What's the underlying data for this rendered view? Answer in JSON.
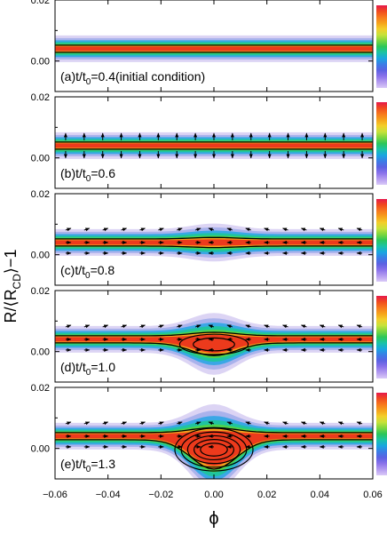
{
  "figure": {
    "ylabel": "R/⟨R",
    "ylabel_sub": "CD",
    "ylabel_tail": "⟩−1",
    "xlabel": "ϕ",
    "xticks": [
      "−0.06",
      "−0.04",
      "−0.02",
      "0.00",
      "0.02",
      "0.04",
      "0.06"
    ],
    "yticks": [
      "0.02",
      "0.00"
    ]
  },
  "chart_data": [
    {
      "type": "heatmap",
      "panel": "a",
      "label_pre": "(a)t/t",
      "label_sub": "0",
      "label_post": "=0.4(initial condition)",
      "xlim": [
        -0.06,
        0.06
      ],
      "ylim": [
        -0.01,
        0.02
      ],
      "dip_depth": 0.0,
      "blob_strength": 0.0,
      "arrows": "none"
    },
    {
      "type": "heatmap",
      "panel": "b",
      "label_pre": "(b)t/t",
      "label_sub": "0",
      "label_post": "=0.6",
      "xlim": [
        -0.06,
        0.06
      ],
      "ylim": [
        -0.01,
        0.02
      ],
      "dip_depth": 0.0,
      "blob_strength": 0.0,
      "arrows": "vertical"
    },
    {
      "type": "heatmap",
      "panel": "c",
      "label_pre": "(c)t/t",
      "label_sub": "0",
      "label_post": "=0.8",
      "xlim": [
        -0.06,
        0.06
      ],
      "ylim": [
        -0.01,
        0.02
      ],
      "dip_depth": 0.0,
      "blob_strength": 0.3,
      "arrows": "converging"
    },
    {
      "type": "heatmap",
      "panel": "d",
      "label_pre": "(d)t/t",
      "label_sub": "0",
      "label_post": "=1.0",
      "xlim": [
        -0.06,
        0.06
      ],
      "ylim": [
        -0.01,
        0.02
      ],
      "dip_depth": 0.003,
      "blob_strength": 0.7,
      "arrows": "converging"
    },
    {
      "type": "heatmap",
      "panel": "e",
      "label_pre": "(e)t/t",
      "label_sub": "0",
      "label_post": "=1.3",
      "xlim": [
        -0.06,
        0.06
      ],
      "ylim": [
        -0.01,
        0.02
      ],
      "dip_depth": 0.008,
      "blob_strength": 1.0,
      "arrows": "vortex"
    }
  ],
  "colorbar_colors": [
    "#e6194b",
    "#f04a1e",
    "#f7781d",
    "#f6a21b",
    "#f3cf2a",
    "#c7e23a",
    "#7bd63f",
    "#2cc65a",
    "#1bc3a6",
    "#1aa6e0",
    "#3b7de6",
    "#5c62e2",
    "#8a72ea",
    "#b49cf0",
    "#d9c9f7"
  ]
}
